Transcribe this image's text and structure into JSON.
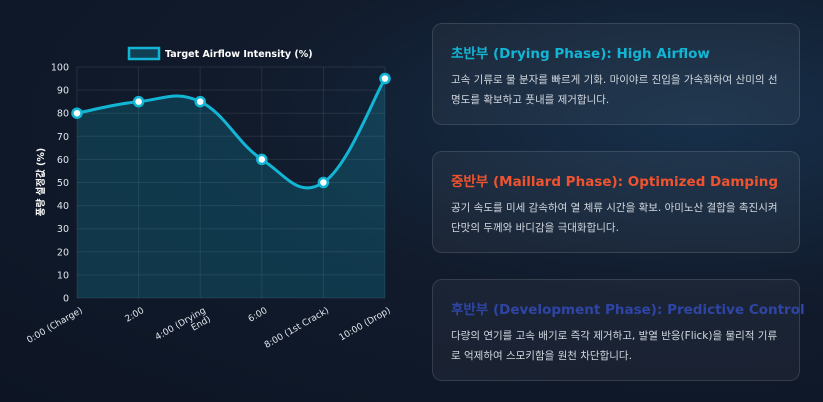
{
  "chart_data": {
    "type": "line",
    "categories": [
      "0:00 (Charge)",
      "2:00",
      "4:00 (Drying End)",
      "6:00",
      "8:00 (1st Crack)",
      "10:00 (Drop)"
    ],
    "series": [
      {
        "name": "Target Airflow Intensity (%)",
        "values": [
          80,
          85,
          85,
          60,
          50,
          95
        ],
        "color": "#13b5d4"
      }
    ],
    "ylabel": "풍량 설정값 (%)",
    "xlabel": "",
    "ylim": [
      0,
      100
    ],
    "yticks": [
      0,
      10,
      20,
      30,
      40,
      50,
      60,
      70,
      80,
      90,
      100
    ],
    "legend": "top-center",
    "grid": true,
    "fill": true
  },
  "phases": [
    {
      "title": "초반부 (Drying Phase): High Airflow",
      "body": "고속 기류로 물 분자를 빠르게 기화. 마이야르 진입을 가속화하여 산미의 선명도를 확보하고 풋내를 제거합니다.",
      "color": "#13b5d4"
    },
    {
      "title": "중반부 (Maillard Phase): Optimized Damping",
      "body": "공기 속도를 미세 감속하여 열 체류 시간을 확보. 아미노산 결합을 촉진시켜 단맛의 두께와 바디감을 극대화합니다.",
      "color": "#f0532e"
    },
    {
      "title": "후반부 (Development Phase): Predictive Control",
      "body": "다량의 연기를 고속 배기로 즉각 제거하고, 발열 반응(Flick)을 물리적 기류로 억제하여 스모키함을 원천 차단합니다.",
      "color": "#2f45a6"
    }
  ]
}
